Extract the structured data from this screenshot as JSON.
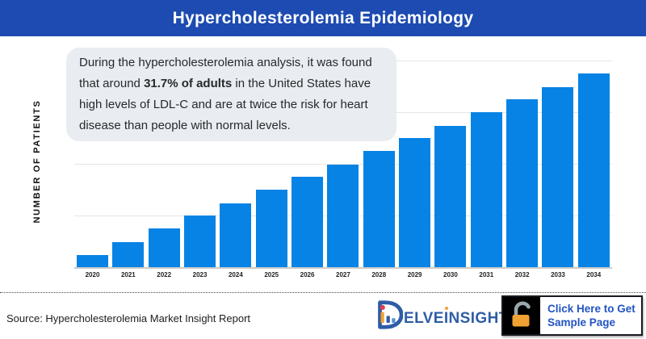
{
  "header": {
    "title": "Hypercholesterolemia Epidemiology"
  },
  "callout": {
    "text_before": "During the hypercholesterolemia analysis, it was found that around ",
    "text_bold": "31.7% of adults",
    "text_after": " in the United States have high levels of LDL-C and are at twice the risk for heart disease than people with normal levels."
  },
  "chart_data": {
    "type": "bar",
    "title": "Hypercholesterolemia Epidemiology",
    "xlabel": "",
    "ylabel": "NUMBER OF PATIENTS",
    "categories": [
      "2020",
      "2021",
      "2022",
      "2023",
      "2024",
      "2025",
      "2026",
      "2027",
      "2028",
      "2029",
      "2030",
      "2031",
      "2032",
      "2033",
      "2034"
    ],
    "values_relative": [
      6.3,
      13.1,
      19.8,
      26.5,
      33.1,
      40,
      46.5,
      53.1,
      59.8,
      66.5,
      72.9,
      79.8,
      86.7,
      93.1,
      100
    ],
    "value_note": "No numeric y-axis tick labels are shown in the figure; values are bar heights relative to 2034 = 100",
    "ylim": [
      0,
      106
    ],
    "grid": true,
    "gridlines_horizontal": 4,
    "legend": "none",
    "bar_color": "#0683e4"
  },
  "footer": {
    "source": "Source: Hypercholesterolemia Market Insight Report",
    "logo": {
      "icon": "delveinsight-logo-mark",
      "part1": "ELVE",
      "part2": "I",
      "part3": "NSIGHT"
    },
    "button": {
      "icon": "open-padlock-icon",
      "line1": "Click Here to Get",
      "line2": "Sample Page"
    }
  },
  "colors": {
    "header_bg": "#1d4bb1",
    "bar_blue": "#0683e4",
    "callout_bg": "#e9edf1",
    "logo_blue": "#2e5da6",
    "button_text_blue": "#2254c4",
    "padlock_orange": "#f0a232",
    "lock_box_black": "#000000"
  }
}
